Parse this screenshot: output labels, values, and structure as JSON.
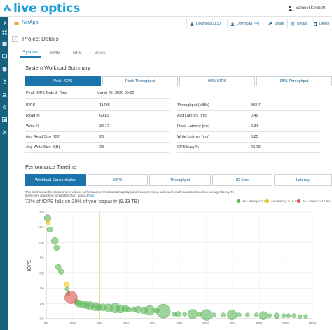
{
  "app": {
    "logo_text": "live optics",
    "user_name": "Samuel Kirchoff"
  },
  "sidebar": {
    "icons": [
      "chevron-right-icon",
      "dashboard-icon",
      "server-icon",
      "desktop-icon",
      "database-icon",
      "user-icon",
      "user-group-icon",
      "gear-icon",
      "storage-icon",
      "tools-icon"
    ]
  },
  "toolbar": {
    "breadcrumb": "NetApp",
    "buttons": [
      {
        "label": "Download XLSX",
        "icon": "download-icon"
      },
      {
        "label": "Download PPT",
        "icon": "download-icon"
      },
      {
        "label": "Share",
        "icon": "share-icon"
      },
      {
        "label": "Details",
        "icon": "list-icon"
      },
      {
        "label": "Delete",
        "icon": "trash-icon"
      }
    ]
  },
  "project": {
    "title": "Project Details",
    "tabs": [
      "System",
      "SMB",
      "NFS",
      "Block"
    ],
    "active_tab": "System"
  },
  "summary": {
    "title": "System Workload Summary",
    "tabs": [
      "Peak IOPS",
      "Peak Throughput",
      "95% IOPS",
      "95% Throughput"
    ],
    "active_tab": "Peak IOPS",
    "date_label": "Peak IOPS Date & Time",
    "date_value": "March 25, 2020 09:00",
    "left": [
      {
        "label": "IOPS",
        "value": "11436"
      },
      {
        "label": "Read %",
        "value": "69.83"
      },
      {
        "label": "Write %",
        "value": "30.17"
      },
      {
        "label": "Avg Read Size (KB)",
        "value": "26"
      },
      {
        "label": "Avg Write Size (KB)",
        "value": "28"
      }
    ],
    "right": [
      {
        "label": "Throughput (MB/s)",
        "value": "302.7"
      },
      {
        "label": "Avg Latency (ms)",
        "value": "0.49"
      },
      {
        "label": "Read Latency (ms)",
        "value": "0.34"
      },
      {
        "label": "Write Latency (ms)",
        "value": "0.85"
      },
      {
        "label": "CPU busy %",
        "value": "43.79"
      }
    ]
  },
  "timeline": {
    "title": "Performance Timeline",
    "tabs": [
      "Workload Concentration",
      "IOPS",
      "Throughput",
      "IO Size",
      "Latency"
    ],
    "active_tab": "Workload Concentration",
    "description": "This chart shows the relationship of volume performance over allocated capacity (also known as Skew) and visual health indicators based on average latency. To learn more about how to read this chart, see our",
    "description_link": "blog",
    "chart_heading": "72% of IOPS falls on 20% of your capacity (9.33 TB)"
  },
  "colors": {
    "accent": "#1b75ab",
    "sidebar": "#17637f",
    "green": "#5cb85c",
    "yellow": "#f0c419",
    "red": "#d9534f"
  },
  "chart_data": {
    "type": "scatter",
    "title": "72% of IOPS falls on 20% of your capacity (9.33 TB)",
    "ylabel": "IOPS",
    "xlabel": "",
    "xlim": [
      0,
      100
    ],
    "ylim": [
      0,
      14
    ],
    "x_ticks": [
      "0%",
      "10%",
      "20%",
      "30%",
      "40%",
      "50%",
      "60%",
      "70%",
      "80%",
      "90%",
      "100%"
    ],
    "y_ticks": [
      "0%",
      "2%",
      "4%",
      "6%",
      "8%",
      "10%",
      "12%",
      "14%"
    ],
    "reference_line_x": 20,
    "grid": true,
    "legend": {
      "placement": "top-right",
      "entries": [
        {
          "name": "Av Latency < 2 ms",
          "color": "#5cb85c"
        },
        {
          "name": "Av Latency 2-10 ms",
          "color": "#f0c419"
        },
        {
          "name": "Av Latency > 10 ms",
          "color": "#d9534f"
        }
      ]
    },
    "series": [
      {
        "name": "Av Latency < 2 ms",
        "points": [
          {
            "x": 0.5,
            "y": 13.2,
            "size": 5
          },
          {
            "x": 1.3,
            "y": 11.7,
            "size": 4
          },
          {
            "x": 3.2,
            "y": 10.2,
            "size": 5
          },
          {
            "x": 3.9,
            "y": 9.3,
            "size": 4
          },
          {
            "x": 4.5,
            "y": 6.8,
            "size": 4
          },
          {
            "x": 5.6,
            "y": 6.2,
            "size": 4
          },
          {
            "x": 7.8,
            "y": 3.9,
            "size": 3
          },
          {
            "x": 8.2,
            "y": 3.3,
            "size": 3
          },
          {
            "x": 11.3,
            "y": 2.2,
            "size": 4
          },
          {
            "x": 12.2,
            "y": 2.0,
            "size": 5
          },
          {
            "x": 13.6,
            "y": 1.9,
            "size": 5
          },
          {
            "x": 15.0,
            "y": 1.8,
            "size": 5
          },
          {
            "x": 16.5,
            "y": 1.7,
            "size": 6
          },
          {
            "x": 18.4,
            "y": 1.6,
            "size": 6
          },
          {
            "x": 19.8,
            "y": 1.5,
            "size": 5
          },
          {
            "x": 21.4,
            "y": 1.5,
            "size": 5
          },
          {
            "x": 23.5,
            "y": 1.4,
            "size": 6
          },
          {
            "x": 25.9,
            "y": 1.4,
            "size": 7
          },
          {
            "x": 27.8,
            "y": 1.3,
            "size": 6
          },
          {
            "x": 29.7,
            "y": 1.3,
            "size": 5
          },
          {
            "x": 31.0,
            "y": 1.2,
            "size": 4
          },
          {
            "x": 33.0,
            "y": 1.2,
            "size": 4
          },
          {
            "x": 34.6,
            "y": 1.2,
            "size": 5
          },
          {
            "x": 36.8,
            "y": 1.1,
            "size": 5
          },
          {
            "x": 38.9,
            "y": 1.1,
            "size": 7
          },
          {
            "x": 41.4,
            "y": 1.1,
            "size": 4
          },
          {
            "x": 44.0,
            "y": 1.0,
            "size": 10
          },
          {
            "x": 48.1,
            "y": 0.6,
            "size": 3
          },
          {
            "x": 49.5,
            "y": 0.6,
            "size": 4
          },
          {
            "x": 52.0,
            "y": 0.6,
            "size": 3
          },
          {
            "x": 55.0,
            "y": 0.6,
            "size": 7
          },
          {
            "x": 57.6,
            "y": 0.6,
            "size": 3
          },
          {
            "x": 60.2,
            "y": 0.5,
            "size": 8
          },
          {
            "x": 63.0,
            "y": 0.5,
            "size": 3
          },
          {
            "x": 66.5,
            "y": 0.5,
            "size": 3
          },
          {
            "x": 69.8,
            "y": 0.5,
            "size": 7
          },
          {
            "x": 72.5,
            "y": 0.5,
            "size": 3
          },
          {
            "x": 75.6,
            "y": 0.5,
            "size": 3
          },
          {
            "x": 79.0,
            "y": 0.5,
            "size": 3
          },
          {
            "x": 81.6,
            "y": 0.4,
            "size": 6
          },
          {
            "x": 84.0,
            "y": 0.4,
            "size": 3
          },
          {
            "x": 86.6,
            "y": 0.4,
            "size": 4
          },
          {
            "x": 89.2,
            "y": 0.4,
            "size": 3
          },
          {
            "x": 91.0,
            "y": 0.4,
            "size": 3
          },
          {
            "x": 93.1,
            "y": 0.4,
            "size": 3
          },
          {
            "x": 95.3,
            "y": 0.3,
            "size": 3
          },
          {
            "x": 97.5,
            "y": 0.3,
            "size": 3
          }
        ]
      },
      {
        "name": "Av Latency 2-10 ms",
        "points": [
          {
            "x": 0.8,
            "y": 12.6,
            "size": 3
          },
          {
            "x": 7.7,
            "y": 4.5,
            "size": 4
          }
        ]
      },
      {
        "name": "Av Latency > 10 ms",
        "points": [
          {
            "x": 9.3,
            "y": 2.8,
            "size": 9
          }
        ]
      }
    ]
  }
}
